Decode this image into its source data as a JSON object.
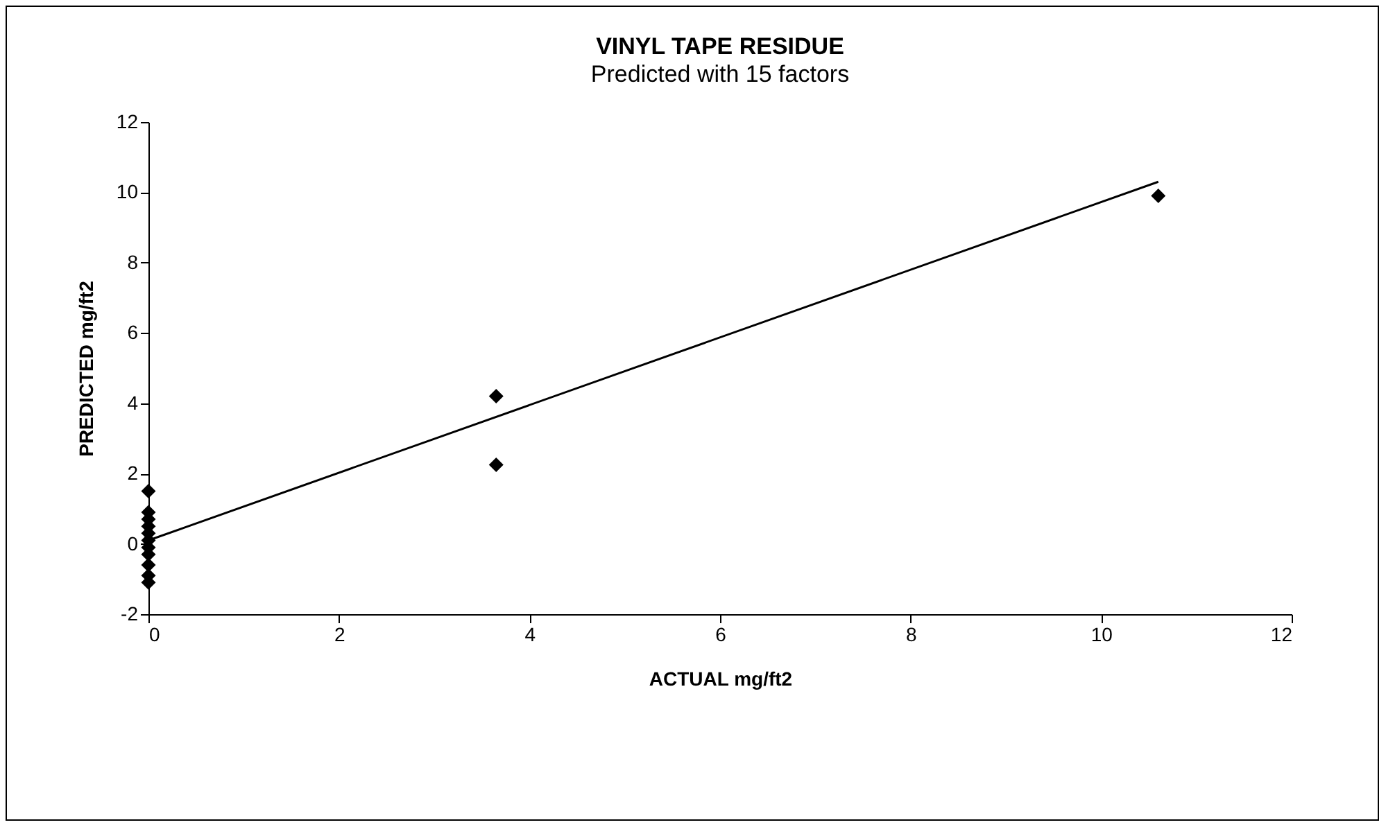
{
  "chart_data": {
    "type": "scatter",
    "title": "VINYL TAPE RESIDUE",
    "subtitle": "Predicted with 15 factors",
    "xlabel": "ACTUAL  mg/ft2",
    "ylabel": "PREDICTED  mg/ft2",
    "xlim": [
      0,
      12
    ],
    "xticks": [
      0,
      2,
      4,
      6,
      8,
      10,
      12
    ],
    "ylim": [
      -2,
      12
    ],
    "yticks": [
      -2,
      0,
      2,
      4,
      6,
      8,
      10,
      12
    ],
    "grid": false,
    "series": [
      {
        "color": "#000000",
        "marker": "diamond",
        "x": [
          0,
          0,
          0,
          0,
          0,
          0,
          0,
          0,
          0,
          0,
          0,
          3.65,
          3.65,
          10.6
        ],
        "values": [
          1.5,
          0.9,
          0.7,
          0.5,
          0.3,
          0.1,
          -0.1,
          -0.3,
          -0.6,
          -0.9,
          -1.1,
          4.2,
          2.25,
          9.9
        ]
      },
      {
        "type": "line",
        "color": "#000000",
        "marker": "none",
        "x": [
          0,
          10.6
        ],
        "values": [
          0.1,
          10.3
        ]
      }
    ]
  }
}
